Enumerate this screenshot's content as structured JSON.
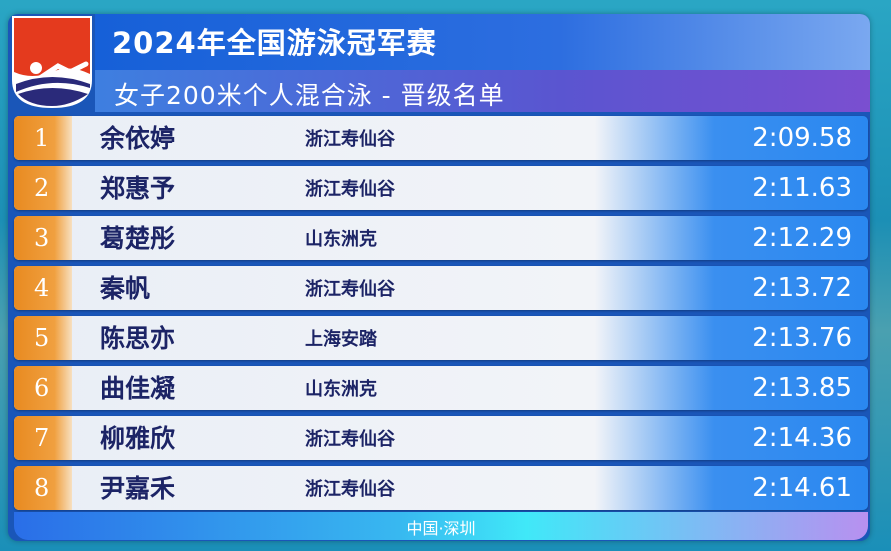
{
  "header": {
    "title": "2024年全国游泳冠军赛",
    "subtitle": "女子200米个人混合泳 - 晋级名单"
  },
  "colors": {
    "rank": "#e88a20",
    "title_bar": "#1660d8",
    "name": "#1c2466",
    "logo_red": "#e43a1e"
  },
  "results": [
    {
      "rank": "1",
      "name": "余依婷",
      "team": "浙江寿仙谷",
      "time": "2:09.58"
    },
    {
      "rank": "2",
      "name": "郑惠予",
      "team": "浙江寿仙谷",
      "time": "2:11.63"
    },
    {
      "rank": "3",
      "name": "葛楚彤",
      "team": "山东洲克",
      "time": "2:12.29"
    },
    {
      "rank": "4",
      "name": "秦帆",
      "team": "浙江寿仙谷",
      "time": "2:13.72"
    },
    {
      "rank": "5",
      "name": "陈思亦",
      "team": "上海安踏",
      "time": "2:13.76"
    },
    {
      "rank": "6",
      "name": "曲佳凝",
      "team": "山东洲克",
      "time": "2:13.85"
    },
    {
      "rank": "7",
      "name": "柳雅欣",
      "team": "浙江寿仙谷",
      "time": "2:14.36"
    },
    {
      "rank": "8",
      "name": "尹嘉禾",
      "team": "浙江寿仙谷",
      "time": "2:14.61"
    }
  ],
  "footer": {
    "location": "中国·深圳"
  }
}
